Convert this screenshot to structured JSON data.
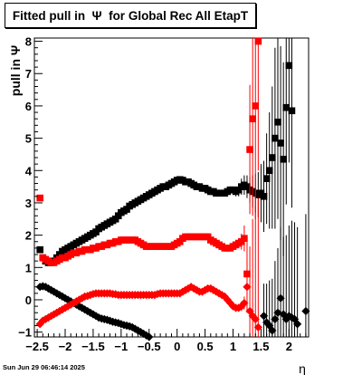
{
  "title_text": "Fitted pull in  Ψ  for Global Rec All EtapT",
  "date_stamp": "Sun Jun 29 06:46:14 2025",
  "chart_data": {
    "type": "scatter",
    "title": "Fitted pull in  Ψ  for Global Rec All EtapT",
    "xlabel": "η",
    "ylabel": "pull in  Ψ",
    "xlim": [
      -2.55,
      2.35
    ],
    "ylim": [
      -1.15,
      8.1
    ],
    "x_ticks": [
      -2.5,
      -2,
      -1.5,
      -1,
      -0.5,
      0,
      0.5,
      1,
      1.5,
      2
    ],
    "x_tick_labels": [
      "−2.5",
      "−2",
      "−1.5",
      "−1",
      "−0.5",
      "0",
      "0.5",
      "1",
      "1.5",
      "2"
    ],
    "y_ticks": [
      -1,
      0,
      1,
      2,
      3,
      4,
      5,
      6,
      7,
      8
    ],
    "y_tick_labels": [
      "−1",
      "0",
      "1",
      "2",
      "3",
      "4",
      "5",
      "6",
      "7",
      "8"
    ],
    "grid": false,
    "series": [
      {
        "color": "#000000",
        "marker": "square",
        "x": [
          -2.45,
          -2.4,
          -2.35,
          -2.3,
          -2.25,
          -2.2,
          -2.15,
          -2.1,
          -2.05,
          -2.0,
          -1.95,
          -1.9,
          -1.85,
          -1.8,
          -1.75,
          -1.7,
          -1.65,
          -1.6,
          -1.55,
          -1.5,
          -1.45,
          -1.4,
          -1.35,
          -1.3,
          -1.25,
          -1.2,
          -1.15,
          -1.1,
          -1.05,
          -1.0,
          -0.95,
          -0.9,
          -0.85,
          -0.8,
          -0.75,
          -0.7,
          -0.65,
          -0.6,
          -0.55,
          -0.5,
          -0.45,
          -0.4,
          -0.35,
          -0.3,
          -0.25,
          -0.2,
          -0.15,
          -0.1,
          -0.05,
          0.0,
          0.05,
          0.1,
          0.15,
          0.2,
          0.25,
          0.3,
          0.35,
          0.4,
          0.45,
          0.5,
          0.55,
          0.6,
          0.65,
          0.7,
          0.75,
          0.8,
          0.85,
          0.9,
          0.95,
          1.0,
          1.05,
          1.1,
          1.15,
          1.2,
          1.25,
          1.3,
          1.35,
          1.4,
          1.45,
          1.5,
          1.55,
          1.6,
          1.65,
          1.7,
          1.75,
          1.8,
          1.85,
          1.9,
          1.95,
          2.0,
          2.05
        ],
        "y": [
          1.55,
          1.3,
          1.2,
          1.15,
          1.15,
          1.2,
          1.3,
          1.4,
          1.5,
          1.55,
          1.6,
          1.65,
          1.7,
          1.75,
          1.8,
          1.85,
          1.9,
          1.95,
          2.0,
          2.05,
          2.1,
          2.2,
          2.25,
          2.3,
          2.35,
          2.4,
          2.45,
          2.5,
          2.6,
          2.7,
          2.75,
          2.8,
          2.9,
          2.95,
          3.0,
          3.05,
          3.1,
          3.15,
          3.2,
          3.25,
          3.3,
          3.35,
          3.4,
          3.45,
          3.5,
          3.5,
          3.55,
          3.6,
          3.65,
          3.7,
          3.72,
          3.7,
          3.65,
          3.65,
          3.6,
          3.55,
          3.5,
          3.5,
          3.45,
          3.45,
          3.4,
          3.35,
          3.35,
          3.3,
          3.3,
          3.3,
          3.3,
          3.35,
          3.4,
          3.4,
          3.35,
          3.4,
          3.5,
          3.55,
          3.5,
          3.4,
          3.35,
          3.3,
          3.25,
          3.3,
          3.2,
          3.75,
          4.0,
          4.4,
          5.0,
          5.5,
          4.85,
          4.35,
          5.95,
          7.25,
          5.85
        ],
        "yerr": [
          0.05,
          0.05,
          0.05,
          0.05,
          0.05,
          0.05,
          0.05,
          0.05,
          0.05,
          0.05,
          0.05,
          0.05,
          0.05,
          0.05,
          0.05,
          0.05,
          0.05,
          0.05,
          0.05,
          0.05,
          0.05,
          0.05,
          0.05,
          0.05,
          0.05,
          0.05,
          0.05,
          0.05,
          0.05,
          0.05,
          0.05,
          0.05,
          0.05,
          0.05,
          0.05,
          0.05,
          0.05,
          0.05,
          0.05,
          0.05,
          0.05,
          0.05,
          0.05,
          0.05,
          0.05,
          0.05,
          0.05,
          0.05,
          0.05,
          0.05,
          0.05,
          0.05,
          0.05,
          0.05,
          0.05,
          0.05,
          0.05,
          0.05,
          0.05,
          0.05,
          0.05,
          0.05,
          0.05,
          0.05,
          0.05,
          0.05,
          0.05,
          0.05,
          0.1,
          0.1,
          0.15,
          0.2,
          0.25,
          0.3,
          0.35,
          0.4,
          0.5,
          0.6,
          0.7,
          0.9,
          1.1,
          1.4,
          1.8,
          2.2,
          2.8,
          3.0,
          3.0,
          3.0,
          3.0,
          3.0,
          3.0
        ]
      },
      {
        "color": "#000000",
        "marker": "diamond",
        "x": [
          -2.45,
          -2.4,
          -2.35,
          -2.3,
          -2.25,
          -2.2,
          -2.15,
          -2.1,
          -2.05,
          -2.0,
          -1.95,
          -1.9,
          -1.85,
          -1.8,
          -1.75,
          -1.7,
          -1.65,
          -1.6,
          -1.55,
          -1.5,
          -1.45,
          -1.4,
          -1.35,
          -1.3,
          -1.25,
          -1.2,
          -1.15,
          -1.1,
          -1.05,
          -1.0,
          -0.95,
          -0.9,
          -0.85,
          -0.8,
          -0.75,
          -0.7,
          -0.65,
          -0.6,
          -0.55,
          -0.5,
          1.55,
          1.6,
          1.65,
          1.7,
          1.75,
          1.8,
          1.85,
          1.9,
          1.95,
          2.0,
          2.05,
          2.1,
          2.15,
          2.3
        ],
        "y": [
          0.4,
          0.42,
          0.4,
          0.35,
          0.3,
          0.25,
          0.2,
          0.15,
          0.1,
          0.05,
          0.0,
          -0.05,
          -0.1,
          -0.15,
          -0.2,
          -0.25,
          -0.3,
          -0.35,
          -0.4,
          -0.45,
          -0.5,
          -0.55,
          -0.58,
          -0.6,
          -0.62,
          -0.65,
          -0.68,
          -0.7,
          -0.72,
          -0.75,
          -0.78,
          -0.8,
          -0.82,
          -0.85,
          -0.9,
          -0.95,
          -1.0,
          -1.05,
          -1.1,
          -1.15,
          -0.5,
          -0.7,
          -0.8,
          -0.95,
          -0.6,
          -0.4,
          0.05,
          -0.45,
          -0.6,
          -0.5,
          -0.55,
          -0.6,
          -0.75,
          -0.35
        ],
        "yerr": [
          0.05,
          0.05,
          0.05,
          0.05,
          0.05,
          0.05,
          0.05,
          0.05,
          0.05,
          0.05,
          0.05,
          0.05,
          0.05,
          0.05,
          0.05,
          0.05,
          0.05,
          0.05,
          0.05,
          0.05,
          0.05,
          0.05,
          0.05,
          0.05,
          0.05,
          0.05,
          0.05,
          0.05,
          0.05,
          0.05,
          0.05,
          0.05,
          0.05,
          0.05,
          0.05,
          0.05,
          0.05,
          0.05,
          0.05,
          0.05,
          1.0,
          1.2,
          1.4,
          1.6,
          1.8,
          2.0,
          2.2,
          2.4,
          2.6,
          2.8,
          3.0,
          3.0,
          3.0,
          3.0
        ]
      },
      {
        "color": "#ff0000",
        "marker": "square",
        "x": [
          -2.45,
          -2.4,
          -2.35,
          -2.3,
          -2.25,
          -2.2,
          -2.15,
          -2.1,
          -2.05,
          -2.0,
          -1.95,
          -1.9,
          -1.85,
          -1.8,
          -1.75,
          -1.7,
          -1.65,
          -1.6,
          -1.55,
          -1.5,
          -1.45,
          -1.4,
          -1.35,
          -1.3,
          -1.25,
          -1.2,
          -1.15,
          -1.1,
          -1.05,
          -1.0,
          -0.95,
          -0.9,
          -0.85,
          -0.8,
          -0.75,
          -0.7,
          -0.65,
          -0.6,
          -0.55,
          -0.5,
          -0.45,
          -0.4,
          -0.35,
          -0.3,
          -0.25,
          -0.2,
          -0.15,
          -0.1,
          -0.05,
          0.0,
          0.05,
          0.1,
          0.15,
          0.2,
          0.25,
          0.3,
          0.35,
          0.4,
          0.45,
          0.5,
          0.55,
          0.6,
          0.65,
          0.7,
          0.75,
          0.8,
          0.85,
          0.9,
          0.95,
          1.0,
          1.05,
          1.1,
          1.15,
          1.2,
          1.25,
          1.3,
          1.35,
          1.4,
          1.45
        ],
        "y": [
          3.15,
          1.3,
          1.25,
          1.2,
          1.15,
          1.15,
          1.2,
          1.25,
          1.3,
          1.3,
          1.35,
          1.4,
          1.45,
          1.45,
          1.5,
          1.5,
          1.55,
          1.55,
          1.55,
          1.6,
          1.6,
          1.65,
          1.65,
          1.7,
          1.7,
          1.75,
          1.75,
          1.8,
          1.8,
          1.85,
          1.85,
          1.85,
          1.85,
          1.85,
          1.85,
          1.8,
          1.75,
          1.7,
          1.65,
          1.65,
          1.65,
          1.65,
          1.65,
          1.65,
          1.65,
          1.65,
          1.65,
          1.65,
          1.7,
          1.75,
          1.8,
          1.9,
          1.95,
          1.95,
          1.95,
          1.95,
          1.95,
          1.95,
          1.95,
          1.95,
          1.95,
          1.85,
          1.8,
          1.75,
          1.7,
          1.65,
          1.6,
          1.6,
          1.6,
          1.65,
          1.7,
          1.75,
          1.8,
          1.9,
          0.8,
          4.65,
          5.6,
          6.0,
          8.0
        ],
        "yerr": [
          0.05,
          0.05,
          0.05,
          0.05,
          0.05,
          0.05,
          0.05,
          0.05,
          0.05,
          0.05,
          0.05,
          0.05,
          0.05,
          0.05,
          0.05,
          0.05,
          0.05,
          0.05,
          0.05,
          0.05,
          0.05,
          0.05,
          0.05,
          0.05,
          0.05,
          0.05,
          0.05,
          0.05,
          0.05,
          0.05,
          0.05,
          0.05,
          0.05,
          0.05,
          0.05,
          0.05,
          0.05,
          0.05,
          0.05,
          0.05,
          0.05,
          0.05,
          0.05,
          0.05,
          0.05,
          0.05,
          0.05,
          0.05,
          0.05,
          0.05,
          0.05,
          0.05,
          0.05,
          0.05,
          0.05,
          0.05,
          0.05,
          0.05,
          0.05,
          0.05,
          0.05,
          0.05,
          0.05,
          0.05,
          0.05,
          0.05,
          0.05,
          0.05,
          0.05,
          0.05,
          0.1,
          0.15,
          0.25,
          0.4,
          1.2,
          2.0,
          3.0,
          3.5,
          4.0
        ]
      },
      {
        "color": "#ff0000",
        "marker": "diamond",
        "x": [
          -2.45,
          -2.4,
          -2.35,
          -2.3,
          -2.25,
          -2.2,
          -2.15,
          -2.1,
          -2.05,
          -2.0,
          -1.95,
          -1.9,
          -1.85,
          -1.8,
          -1.75,
          -1.7,
          -1.65,
          -1.6,
          -1.55,
          -1.5,
          -1.45,
          -1.4,
          -1.35,
          -1.3,
          -1.25,
          -1.2,
          -1.15,
          -1.1,
          -1.05,
          -1.0,
          -0.95,
          -0.9,
          -0.85,
          -0.8,
          -0.75,
          -0.7,
          -0.65,
          -0.6,
          -0.55,
          -0.5,
          -0.45,
          -0.4,
          -0.35,
          -0.3,
          -0.25,
          -0.2,
          -0.15,
          -0.1,
          -0.05,
          0.0,
          0.05,
          0.1,
          0.15,
          0.2,
          0.25,
          0.3,
          0.35,
          0.4,
          0.45,
          0.5,
          0.55,
          0.6,
          0.65,
          0.7,
          0.75,
          0.8,
          0.85,
          0.9,
          0.95,
          1.0,
          1.05,
          1.1,
          1.15,
          1.2,
          1.25,
          1.3,
          1.35,
          1.4,
          1.45
        ],
        "y": [
          -0.75,
          -0.65,
          -0.6,
          -0.55,
          -0.5,
          -0.45,
          -0.4,
          -0.35,
          -0.3,
          -0.25,
          -0.2,
          -0.15,
          -0.1,
          -0.05,
          0.0,
          0.05,
          0.1,
          0.12,
          0.15,
          0.18,
          0.2,
          0.2,
          0.2,
          0.2,
          0.2,
          0.2,
          0.18,
          0.17,
          0.15,
          0.15,
          0.15,
          0.15,
          0.15,
          0.15,
          0.15,
          0.15,
          0.15,
          0.15,
          0.15,
          0.15,
          0.15,
          0.15,
          0.18,
          0.2,
          0.2,
          0.2,
          0.2,
          0.2,
          0.2,
          0.2,
          0.2,
          0.25,
          0.3,
          0.35,
          0.4,
          0.35,
          0.3,
          0.25,
          0.25,
          0.3,
          0.35,
          0.35,
          0.3,
          0.25,
          0.2,
          0.15,
          0.1,
          0.0,
          -0.1,
          -0.2,
          -0.25,
          -0.25,
          -0.2,
          -0.1,
          0.4,
          -0.35,
          -0.5,
          -0.6,
          -0.85
        ],
        "yerr": [
          0.05,
          0.05,
          0.05,
          0.05,
          0.05,
          0.05,
          0.05,
          0.05,
          0.05,
          0.05,
          0.05,
          0.05,
          0.05,
          0.05,
          0.05,
          0.05,
          0.05,
          0.05,
          0.05,
          0.05,
          0.05,
          0.05,
          0.05,
          0.05,
          0.05,
          0.05,
          0.05,
          0.05,
          0.05,
          0.05,
          0.05,
          0.05,
          0.05,
          0.05,
          0.05,
          0.05,
          0.05,
          0.05,
          0.05,
          0.05,
          0.05,
          0.05,
          0.05,
          0.05,
          0.05,
          0.05,
          0.05,
          0.05,
          0.05,
          0.05,
          0.05,
          0.05,
          0.05,
          0.05,
          0.05,
          0.05,
          0.05,
          0.05,
          0.05,
          0.05,
          0.05,
          0.05,
          0.05,
          0.05,
          0.05,
          0.05,
          0.05,
          0.05,
          0.05,
          0.05,
          0.05,
          0.1,
          0.15,
          0.2,
          0.8,
          2.0,
          3.0,
          3.5,
          4.0
        ]
      }
    ]
  }
}
